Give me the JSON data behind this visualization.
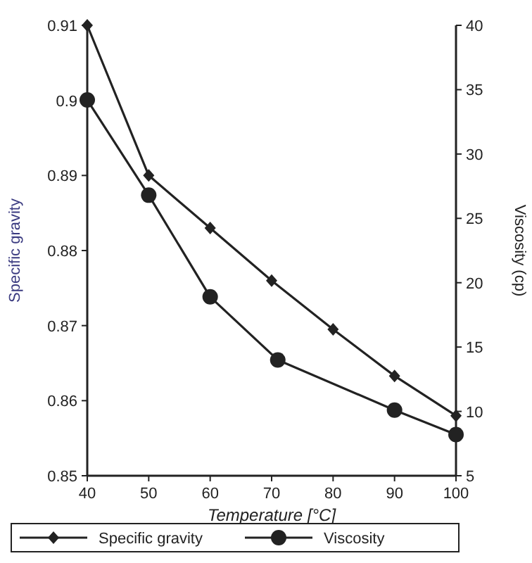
{
  "chart_data": {
    "type": "line",
    "xlabel": "Temperature [°C]",
    "ylabel": "Specific gravity",
    "y2label": "Viscosity (cp)",
    "x": [
      40,
      50,
      60,
      70,
      80,
      90,
      100
    ],
    "series": [
      {
        "name": "Specific gravity",
        "color": "#222222",
        "marker": "diamond",
        "values": [
          0.91,
          0.89,
          0.883,
          0.876,
          0.8695,
          0.8633,
          0.858
        ]
      },
      {
        "name": "Viscosity",
        "color": "#222222",
        "marker": "circle",
        "axis": "y2",
        "x": [
          40,
          50,
          60,
          71,
          90,
          100
        ],
        "values": [
          34.2,
          26.8,
          18.9,
          14,
          10.1,
          8.2
        ]
      }
    ],
    "xlim": [
      40,
      100
    ],
    "xticks": [
      40,
      50,
      60,
      70,
      80,
      90,
      100
    ],
    "ylim": [
      0.85,
      0.91
    ],
    "yticks": [
      0.85,
      0.86,
      0.87,
      0.88,
      0.89,
      0.9,
      0.91
    ],
    "y2lim": [
      5,
      40
    ],
    "y2ticks": [
      5,
      10,
      15,
      20,
      25,
      30,
      35,
      40
    ],
    "legend": "bottom",
    "grid": false
  }
}
